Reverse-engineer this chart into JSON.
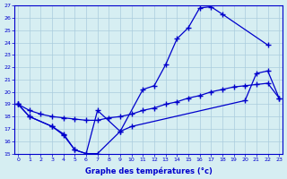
{
  "xlabel": "Graphe des températures (°c)",
  "bg_color": "#d6eef2",
  "line_color": "#0000cc",
  "grid_color": "#aaccdd",
  "xlim": [
    0,
    23
  ],
  "ylim": [
    15,
    27
  ],
  "yticks": [
    15,
    16,
    17,
    18,
    19,
    20,
    21,
    22,
    23,
    24,
    25,
    26,
    27
  ],
  "xticks": [
    0,
    1,
    2,
    3,
    4,
    5,
    6,
    7,
    8,
    9,
    10,
    11,
    12,
    13,
    14,
    15,
    16,
    17,
    18,
    19,
    20,
    21,
    22,
    23
  ],
  "max_curve_x": [
    0,
    1,
    3,
    4,
    5,
    6,
    7,
    9,
    11,
    12,
    13,
    14,
    15,
    16,
    17,
    18,
    22
  ],
  "max_curve_y": [
    19.0,
    18.0,
    17.2,
    16.5,
    15.3,
    15.0,
    18.5,
    16.8,
    20.2,
    20.5,
    22.2,
    24.3,
    25.2,
    26.8,
    26.9,
    26.3,
    23.8
  ],
  "min_curve_x": [
    0,
    1,
    3,
    4,
    5,
    6,
    7,
    9,
    10,
    20,
    21,
    22,
    23
  ],
  "min_curve_y": [
    19.0,
    18.0,
    17.2,
    16.6,
    15.3,
    15.0,
    15.0,
    16.8,
    17.2,
    19.3,
    21.5,
    21.7,
    19.5
  ],
  "mean_curve_x": [
    0,
    1,
    2,
    3,
    4,
    5,
    6,
    7,
    8,
    9,
    10,
    11,
    12,
    13,
    14,
    15,
    16,
    17,
    18,
    19,
    20,
    21,
    22,
    23
  ],
  "mean_curve_y": [
    19.0,
    18.5,
    18.2,
    18.0,
    17.9,
    17.8,
    17.7,
    17.7,
    17.9,
    18.0,
    18.2,
    18.5,
    18.7,
    19.0,
    19.2,
    19.5,
    19.7,
    20.0,
    20.2,
    20.4,
    20.5,
    20.6,
    20.7,
    19.5
  ]
}
